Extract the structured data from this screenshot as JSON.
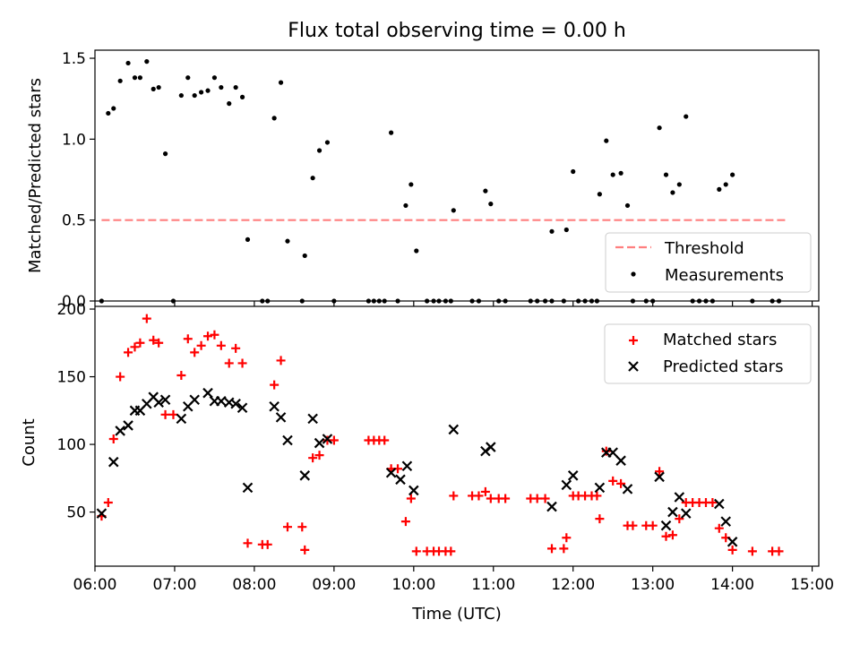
{
  "title": "Flux total observing time = 0.00 h",
  "xlabel": "Time (UTC)",
  "x_ticks": [
    "06:00",
    "07:00",
    "08:00",
    "09:00",
    "10:00",
    "11:00",
    "12:00",
    "13:00",
    "14:00",
    "15:00"
  ],
  "colors": {
    "threshold": "#ff7f7f",
    "measurements": "#000000",
    "matched": "#ff0000",
    "predicted": "#000000"
  },
  "chart_data": [
    {
      "type": "scatter",
      "ylabel": "Matched/Predicted stars",
      "xlim": [
        "06:00",
        "15:05"
      ],
      "ylim": [
        0,
        1.55
      ],
      "y_ticks": [
        "0.0",
        "0.5",
        "1.0",
        "1.5"
      ],
      "legend_position": "lower-right",
      "grid": false,
      "series": [
        {
          "name": "Threshold",
          "kind": "dashed-line",
          "points": [
            [
              "06:05",
              0.5
            ],
            [
              "14:40",
              0.5
            ]
          ]
        },
        {
          "name": "Measurements",
          "kind": "dots",
          "points": [
            [
              "06:05",
              0.0
            ],
            [
              "06:10",
              1.16
            ],
            [
              "06:14",
              1.19
            ],
            [
              "06:19",
              1.36
            ],
            [
              "06:25",
              1.47
            ],
            [
              "06:30",
              1.38
            ],
            [
              "06:34",
              1.38
            ],
            [
              "06:39",
              1.48
            ],
            [
              "06:44",
              1.31
            ],
            [
              "06:48",
              1.32
            ],
            [
              "06:53",
              0.91
            ],
            [
              "06:59",
              0.0
            ],
            [
              "07:05",
              1.27
            ],
            [
              "07:10",
              1.38
            ],
            [
              "07:15",
              1.27
            ],
            [
              "07:20",
              1.29
            ],
            [
              "07:25",
              1.3
            ],
            [
              "07:30",
              1.38
            ],
            [
              "07:35",
              1.32
            ],
            [
              "07:41",
              1.22
            ],
            [
              "07:46",
              1.32
            ],
            [
              "07:51",
              1.26
            ],
            [
              "07:55",
              0.38
            ],
            [
              "08:06",
              0.0
            ],
            [
              "08:10",
              0.0
            ],
            [
              "08:15",
              1.13
            ],
            [
              "08:20",
              1.35
            ],
            [
              "08:25",
              0.37
            ],
            [
              "08:36",
              0.0
            ],
            [
              "08:38",
              0.28
            ],
            [
              "08:44",
              0.76
            ],
            [
              "08:49",
              0.93
            ],
            [
              "08:55",
              0.98
            ],
            [
              "09:00",
              0.0
            ],
            [
              "09:26",
              0.0
            ],
            [
              "09:30",
              0.0
            ],
            [
              "09:34",
              0.0
            ],
            [
              "09:38",
              0.0
            ],
            [
              "09:43",
              1.04
            ],
            [
              "09:48",
              0.0
            ],
            [
              "09:54",
              0.59
            ],
            [
              "09:58",
              0.72
            ],
            [
              "10:02",
              0.31
            ],
            [
              "10:10",
              0.0
            ],
            [
              "10:15",
              0.0
            ],
            [
              "10:19",
              0.0
            ],
            [
              "10:24",
              0.0
            ],
            [
              "10:28",
              0.0
            ],
            [
              "10:30",
              0.56
            ],
            [
              "10:44",
              0.0
            ],
            [
              "10:49",
              0.0
            ],
            [
              "10:54",
              0.68
            ],
            [
              "10:58",
              0.6
            ],
            [
              "11:04",
              0.0
            ],
            [
              "11:09",
              0.0
            ],
            [
              "11:28",
              0.0
            ],
            [
              "11:33",
              0.0
            ],
            [
              "11:39",
              0.0
            ],
            [
              "11:44",
              0.0
            ],
            [
              "11:44",
              0.43
            ],
            [
              "11:53",
              0.0
            ],
            [
              "11:55",
              0.44
            ],
            [
              "12:00",
              0.8
            ],
            [
              "12:04",
              0.0
            ],
            [
              "12:09",
              0.0
            ],
            [
              "12:14",
              0.0
            ],
            [
              "12:18",
              0.0
            ],
            [
              "12:20",
              0.66
            ],
            [
              "12:25",
              0.99
            ],
            [
              "12:30",
              0.78
            ],
            [
              "12:36",
              0.79
            ],
            [
              "12:41",
              0.59
            ],
            [
              "12:45",
              0.0
            ],
            [
              "12:55",
              0.0
            ],
            [
              "13:00",
              0.0
            ],
            [
              "13:05",
              1.07
            ],
            [
              "13:10",
              0.78
            ],
            [
              "13:15",
              0.67
            ],
            [
              "13:20",
              0.72
            ],
            [
              "13:25",
              1.14
            ],
            [
              "13:30",
              0.0
            ],
            [
              "13:35",
              0.0
            ],
            [
              "13:40",
              0.0
            ],
            [
              "13:45",
              0.0
            ],
            [
              "13:50",
              0.69
            ],
            [
              "13:55",
              0.72
            ],
            [
              "14:00",
              0.78
            ],
            [
              "14:15",
              0.0
            ],
            [
              "14:30",
              0.0
            ],
            [
              "14:35",
              0.0
            ]
          ]
        }
      ]
    },
    {
      "type": "scatter",
      "ylabel": "Count",
      "xlim": [
        "06:00",
        "15:05"
      ],
      "ylim": [
        10,
        202
      ],
      "y_ticks": [
        "50",
        "100",
        "150",
        "200"
      ],
      "legend_position": "upper-right",
      "grid": false,
      "series": [
        {
          "name": "Matched stars",
          "marker": "plus",
          "points": [
            [
              "06:05",
              47
            ],
            [
              "06:10",
              57
            ],
            [
              "06:14",
              104
            ],
            [
              "06:19",
              150
            ],
            [
              "06:25",
              168
            ],
            [
              "06:30",
              172
            ],
            [
              "06:34",
              175
            ],
            [
              "06:39",
              193
            ],
            [
              "06:44",
              177
            ],
            [
              "06:48",
              175
            ],
            [
              "06:53",
              122
            ],
            [
              "06:59",
              122
            ],
            [
              "07:05",
              151
            ],
            [
              "07:10",
              178
            ],
            [
              "07:15",
              168
            ],
            [
              "07:20",
              173
            ],
            [
              "07:25",
              180
            ],
            [
              "07:30",
              181
            ],
            [
              "07:35",
              173
            ],
            [
              "07:41",
              160
            ],
            [
              "07:46",
              171
            ],
            [
              "07:51",
              160
            ],
            [
              "07:55",
              27
            ],
            [
              "08:06",
              26
            ],
            [
              "08:10",
              26
            ],
            [
              "08:15",
              144
            ],
            [
              "08:20",
              162
            ],
            [
              "08:25",
              39
            ],
            [
              "08:36",
              39
            ],
            [
              "08:38",
              22
            ],
            [
              "08:44",
              90
            ],
            [
              "08:49",
              92
            ],
            [
              "08:55",
              103
            ],
            [
              "09:00",
              103
            ],
            [
              "09:26",
              103
            ],
            [
              "09:30",
              103
            ],
            [
              "09:34",
              103
            ],
            [
              "09:38",
              103
            ],
            [
              "09:43",
              82
            ],
            [
              "09:48",
              82
            ],
            [
              "09:54",
              43
            ],
            [
              "09:58",
              60
            ],
            [
              "10:02",
              21
            ],
            [
              "10:10",
              21
            ],
            [
              "10:15",
              21
            ],
            [
              "10:19",
              21
            ],
            [
              "10:24",
              21
            ],
            [
              "10:28",
              21
            ],
            [
              "10:30",
              62
            ],
            [
              "10:44",
              62
            ],
            [
              "10:49",
              62
            ],
            [
              "10:54",
              65
            ],
            [
              "10:58",
              60
            ],
            [
              "11:04",
              60
            ],
            [
              "11:09",
              60
            ],
            [
              "11:28",
              60
            ],
            [
              "11:33",
              60
            ],
            [
              "11:39",
              60
            ],
            [
              "11:44",
              23
            ],
            [
              "11:53",
              23
            ],
            [
              "11:55",
              31
            ],
            [
              "12:00",
              62
            ],
            [
              "12:04",
              62
            ],
            [
              "12:09",
              62
            ],
            [
              "12:14",
              62
            ],
            [
              "12:18",
              62
            ],
            [
              "12:20",
              45
            ],
            [
              "12:25",
              95
            ],
            [
              "12:30",
              73
            ],
            [
              "12:36",
              71
            ],
            [
              "12:41",
              40
            ],
            [
              "12:45",
              40
            ],
            [
              "12:55",
              40
            ],
            [
              "13:00",
              40
            ],
            [
              "13:05",
              80
            ],
            [
              "13:10",
              32
            ],
            [
              "13:15",
              33
            ],
            [
              "13:20",
              45
            ],
            [
              "13:25",
              57
            ],
            [
              "13:30",
              57
            ],
            [
              "13:35",
              57
            ],
            [
              "13:40",
              57
            ],
            [
              "13:45",
              57
            ],
            [
              "13:50",
              38
            ],
            [
              "13:55",
              31
            ],
            [
              "14:00",
              22
            ],
            [
              "14:15",
              21
            ],
            [
              "14:30",
              21
            ],
            [
              "14:35",
              21
            ]
          ]
        },
        {
          "name": "Predicted stars",
          "marker": "x",
          "points": [
            [
              "06:05",
              49
            ],
            [
              "06:14",
              87
            ],
            [
              "06:19",
              110
            ],
            [
              "06:25",
              114
            ],
            [
              "06:30",
              125
            ],
            [
              "06:34",
              125
            ],
            [
              "06:39",
              130
            ],
            [
              "06:44",
              135
            ],
            [
              "06:48",
              131
            ],
            [
              "06:53",
              133
            ],
            [
              "07:05",
              119
            ],
            [
              "07:10",
              128
            ],
            [
              "07:15",
              133
            ],
            [
              "07:25",
              138
            ],
            [
              "07:30",
              132
            ],
            [
              "07:35",
              132
            ],
            [
              "07:41",
              131
            ],
            [
              "07:46",
              130
            ],
            [
              "07:51",
              127
            ],
            [
              "07:55",
              68
            ],
            [
              "08:15",
              128
            ],
            [
              "08:20",
              120
            ],
            [
              "08:25",
              103
            ],
            [
              "08:38",
              77
            ],
            [
              "08:44",
              119
            ],
            [
              "08:49",
              101
            ],
            [
              "08:55",
              104
            ],
            [
              "09:43",
              79
            ],
            [
              "09:50",
              74
            ],
            [
              "09:55",
              84
            ],
            [
              "10:00",
              66
            ],
            [
              "10:30",
              111
            ],
            [
              "10:54",
              95
            ],
            [
              "10:58",
              98
            ],
            [
              "11:44",
              54
            ],
            [
              "11:55",
              70
            ],
            [
              "12:00",
              77
            ],
            [
              "12:20",
              68
            ],
            [
              "12:25",
              94
            ],
            [
              "12:30",
              94
            ],
            [
              "12:36",
              88
            ],
            [
              "12:41",
              67
            ],
            [
              "13:05",
              76
            ],
            [
              "13:10",
              40
            ],
            [
              "13:15",
              50
            ],
            [
              "13:20",
              61
            ],
            [
              "13:25",
              49
            ],
            [
              "13:50",
              56
            ],
            [
              "13:55",
              43
            ],
            [
              "14:00",
              28
            ]
          ]
        }
      ]
    }
  ]
}
